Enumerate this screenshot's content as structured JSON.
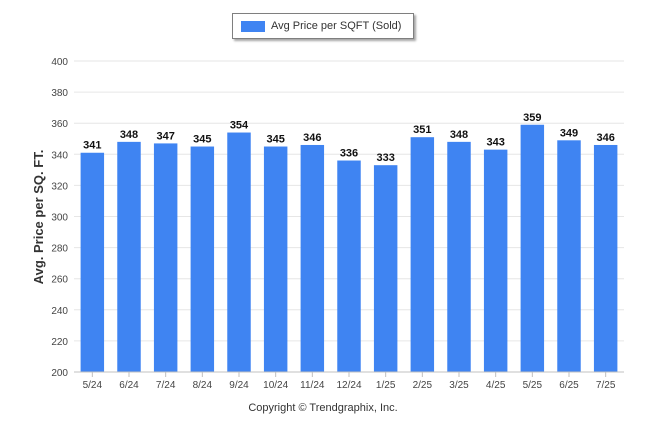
{
  "chart_data": {
    "type": "bar",
    "categories": [
      "5/24",
      "6/24",
      "7/24",
      "8/24",
      "9/24",
      "10/24",
      "11/24",
      "12/24",
      "1/25",
      "2/25",
      "3/25",
      "4/25",
      "5/25",
      "6/25",
      "7/25"
    ],
    "series": [
      {
        "name": "Avg Price per SQFT (Sold)",
        "values": [
          341,
          348,
          347,
          345,
          354,
          345,
          346,
          336,
          333,
          351,
          348,
          343,
          359,
          349,
          346
        ],
        "color": "#3f84f2"
      }
    ],
    "data_labels": [
      "341",
      "348",
      "347",
      "345",
      "354",
      "345",
      "346",
      "336",
      "333",
      "351",
      "348",
      "343",
      "359",
      "349",
      "346"
    ],
    "ylabel": "Avg. Price per SQ. FT.",
    "xlabel": "",
    "ylim": [
      200,
      400
    ],
    "yticks": [
      "200",
      "220",
      "240",
      "260",
      "280",
      "300",
      "320",
      "340",
      "360",
      "380",
      "400"
    ],
    "grid": true,
    "legend_position": "top-center",
    "footer": "Copyright © Trendgraphix, Inc."
  }
}
